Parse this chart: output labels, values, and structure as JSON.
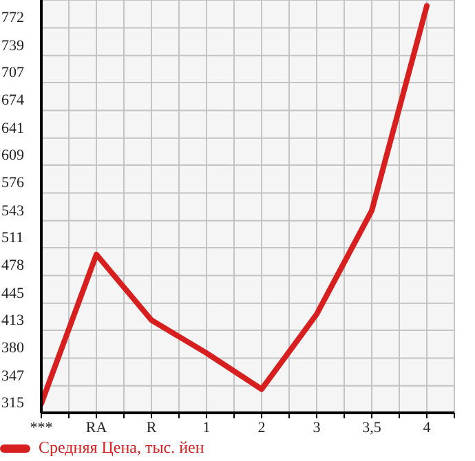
{
  "chart_data": {
    "type": "line",
    "categories": [
      "***",
      "RA",
      "R",
      "1",
      "2",
      "3",
      "3,5",
      "4"
    ],
    "series": [
      {
        "name": "Средняя Цена, тыс. йен",
        "color": "#d71f1f",
        "values": [
          326,
          503,
          425,
          386,
          343,
          432,
          555,
          798
        ]
      }
    ],
    "ylim": [
      315,
      805
    ],
    "yticks": [
      315,
      347,
      380,
      413,
      445,
      478,
      511,
      543,
      576,
      609,
      641,
      674,
      707,
      739,
      772
    ],
    "grid": true,
    "legend": "bottom",
    "marker": "none",
    "line_style": "solid"
  }
}
